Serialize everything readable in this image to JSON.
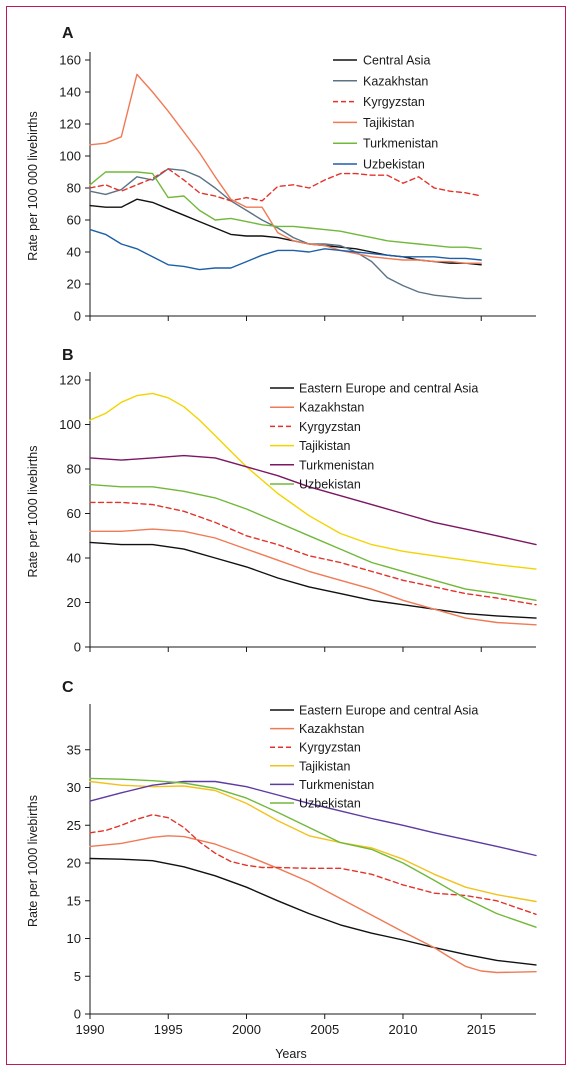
{
  "figure": {
    "frame_color": "#c2185b",
    "x_axis_title": "Years"
  },
  "chart_data": [
    {
      "type": "line",
      "panel": "A",
      "ylabel": "Rate per 100 000 livebirths",
      "xlim": [
        1990,
        2018.5
      ],
      "ylim": [
        0,
        160
      ],
      "yticks": [
        0,
        20,
        40,
        60,
        80,
        100,
        120,
        140,
        160
      ],
      "xticks": [
        1990,
        1995,
        2000,
        2005,
        2010,
        2015
      ],
      "show_x_tick_labels": false,
      "legend_position": "top-right",
      "grid": false,
      "series": [
        {
          "name": "Central Asia",
          "color": "#111111",
          "dash": "solid",
          "x": [
            1990,
            1991,
            1992,
            1993,
            1994,
            1995,
            1996,
            1997,
            1998,
            1999,
            2000,
            2001,
            2002,
            2003,
            2004,
            2005,
            2006,
            2007,
            2008,
            2009,
            2010,
            2011,
            2012,
            2013,
            2014,
            2015
          ],
          "y": [
            69,
            68,
            68,
            73,
            71,
            67,
            63,
            59,
            55,
            51,
            50,
            50,
            49,
            47,
            45,
            44,
            43,
            42,
            40,
            38,
            37,
            35,
            34,
            33,
            33,
            32
          ]
        },
        {
          "name": "Kazakhstan",
          "color": "#5b7385",
          "dash": "solid",
          "x": [
            1990,
            1991,
            1992,
            1993,
            1994,
            1995,
            1996,
            1997,
            1998,
            1999,
            2000,
            2001,
            2002,
            2003,
            2004,
            2005,
            2006,
            2007,
            2008,
            2009,
            2010,
            2011,
            2012,
            2013,
            2014,
            2015
          ],
          "y": [
            78,
            76,
            79,
            87,
            85,
            92,
            91,
            87,
            80,
            72,
            66,
            60,
            55,
            49,
            45,
            45,
            44,
            40,
            34,
            24,
            19,
            15,
            13,
            12,
            11,
            11
          ]
        },
        {
          "name": "Kyrgyzstan",
          "color": "#e2342b",
          "dash": "dashed",
          "x": [
            1990,
            1991,
            1992,
            1993,
            1994,
            1995,
            1996,
            1997,
            1998,
            1999,
            2000,
            2001,
            2002,
            2003,
            2004,
            2005,
            2006,
            2007,
            2008,
            2009,
            2010,
            2011,
            2012,
            2013,
            2014,
            2015
          ],
          "y": [
            80,
            82,
            78,
            82,
            86,
            92,
            85,
            77,
            75,
            72,
            74,
            72,
            81,
            82,
            80,
            85,
            89,
            89,
            88,
            88,
            83,
            87,
            80,
            78,
            77,
            75
          ]
        },
        {
          "name": "Tajikistan",
          "color": "#f07a55",
          "dash": "solid",
          "x": [
            1990,
            1991,
            1992,
            1993,
            1994,
            1995,
            1996,
            1997,
            1998,
            1999,
            2000,
            2001,
            2002,
            2003,
            2004,
            2005,
            2006,
            2007,
            2008,
            2009,
            2010,
            2011,
            2012,
            2013,
            2014,
            2015
          ],
          "y": [
            107,
            108,
            112,
            151,
            140,
            128,
            115,
            102,
            87,
            73,
            68,
            68,
            52,
            47,
            45,
            44,
            41,
            39,
            37,
            36,
            35,
            35,
            34,
            34,
            33,
            33
          ]
        },
        {
          "name": "Turkmenistan",
          "color": "#70b83a",
          "dash": "solid",
          "x": [
            1990,
            1991,
            1992,
            1993,
            1994,
            1995,
            1996,
            1997,
            1998,
            1999,
            2000,
            2001,
            2002,
            2003,
            2004,
            2005,
            2006,
            2007,
            2008,
            2009,
            2010,
            2011,
            2012,
            2013,
            2014,
            2015
          ],
          "y": [
            82,
            90,
            90,
            90,
            89,
            74,
            75,
            66,
            60,
            61,
            59,
            57,
            56,
            56,
            55,
            54,
            53,
            51,
            49,
            47,
            46,
            45,
            44,
            43,
            43,
            42
          ]
        },
        {
          "name": "Uzbekistan",
          "color": "#1e5fa8",
          "dash": "solid",
          "x": [
            1990,
            1991,
            1992,
            1993,
            1994,
            1995,
            1996,
            1997,
            1998,
            1999,
            2000,
            2001,
            2002,
            2003,
            2004,
            2005,
            2006,
            2007,
            2008,
            2009,
            2010,
            2011,
            2012,
            2013,
            2014,
            2015
          ],
          "y": [
            54,
            51,
            45,
            42,
            37,
            32,
            31,
            29,
            30,
            30,
            34,
            38,
            41,
            41,
            40,
            42,
            41,
            40,
            39,
            38,
            37,
            37,
            37,
            36,
            36,
            35
          ]
        }
      ]
    },
    {
      "type": "line",
      "panel": "B",
      "ylabel": "Rate per 1000 livebirths",
      "xlim": [
        1990,
        2018.5
      ],
      "ylim": [
        0,
        120
      ],
      "yticks": [
        0,
        20,
        40,
        60,
        80,
        100,
        120
      ],
      "xticks": [
        1990,
        1995,
        2000,
        2005,
        2010,
        2015
      ],
      "show_x_tick_labels": false,
      "legend_position": "top-right",
      "grid": false,
      "series": [
        {
          "name": "Eastern Europe and central Asia",
          "color": "#111111",
          "dash": "solid",
          "x": [
            1990,
            1992,
            1994,
            1996,
            1998,
            2000,
            2002,
            2004,
            2006,
            2008,
            2010,
            2012,
            2014,
            2016,
            2018.5
          ],
          "y": [
            47,
            46,
            46,
            44,
            40,
            36,
            31,
            27,
            24,
            21,
            19,
            17,
            15,
            14,
            13
          ]
        },
        {
          "name": "Kazakhstan",
          "color": "#f07a55",
          "dash": "solid",
          "x": [
            1990,
            1992,
            1994,
            1996,
            1998,
            2000,
            2002,
            2004,
            2006,
            2008,
            2010,
            2012,
            2014,
            2016,
            2018.5
          ],
          "y": [
            52,
            52,
            53,
            52,
            49,
            44,
            39,
            34,
            30,
            26,
            21,
            17,
            13,
            11,
            10
          ]
        },
        {
          "name": "Kyrgyzstan",
          "color": "#e2342b",
          "dash": "dashed",
          "x": [
            1990,
            1992,
            1994,
            1996,
            1998,
            2000,
            2002,
            2004,
            2006,
            2008,
            2010,
            2012,
            2014,
            2016,
            2018.5
          ],
          "y": [
            65,
            65,
            64,
            61,
            56,
            50,
            46,
            41,
            38,
            34,
            30,
            27,
            24,
            22,
            19
          ]
        },
        {
          "name": "Tajikistan",
          "color": "#f2d400",
          "dash": "solid",
          "x": [
            1990,
            1991,
            1992,
            1993,
            1994,
            1995,
            1996,
            1997,
            1998,
            1999,
            2000,
            2002,
            2004,
            2006,
            2008,
            2010,
            2012,
            2014,
            2016,
            2018.5
          ],
          "y": [
            102,
            105,
            110,
            113,
            114,
            112,
            108,
            102,
            95,
            88,
            81,
            69,
            59,
            51,
            46,
            43,
            41,
            39,
            37,
            35
          ]
        },
        {
          "name": "Turkmenistan",
          "color": "#7b1763",
          "dash": "solid",
          "x": [
            1990,
            1992,
            1994,
            1996,
            1998,
            2000,
            2002,
            2004,
            2006,
            2008,
            2010,
            2012,
            2014,
            2016,
            2018.5
          ],
          "y": [
            85,
            84,
            85,
            86,
            85,
            81,
            77,
            72,
            68,
            64,
            60,
            56,
            53,
            50,
            46
          ]
        },
        {
          "name": "Uzbekistan",
          "color": "#70b83a",
          "dash": "solid",
          "x": [
            1990,
            1992,
            1994,
            1996,
            1998,
            2000,
            2002,
            2004,
            2006,
            2008,
            2010,
            2012,
            2014,
            2016,
            2018.5
          ],
          "y": [
            73,
            72,
            72,
            70,
            67,
            62,
            56,
            50,
            44,
            38,
            34,
            30,
            26,
            24,
            21
          ]
        }
      ]
    },
    {
      "type": "line",
      "panel": "C",
      "ylabel": "Rate per 1000 livebirths",
      "xlim": [
        1990,
        2018.5
      ],
      "ylim": [
        0,
        40
      ],
      "yticks": [
        0,
        5,
        10,
        15,
        20,
        25,
        30,
        35
      ],
      "xticks": [
        1990,
        1995,
        2000,
        2005,
        2010,
        2015
      ],
      "show_x_tick_labels": true,
      "xlabel": "Years",
      "legend_position": "top-right",
      "grid": false,
      "series": [
        {
          "name": "Eastern Europe and central Asia",
          "color": "#111111",
          "dash": "solid",
          "x": [
            1990,
            1992,
            1994,
            1996,
            1998,
            2000,
            2002,
            2004,
            2006,
            2008,
            2010,
            2012,
            2014,
            2016,
            2018.5
          ],
          "y": [
            20.6,
            20.5,
            20.3,
            19.5,
            18.3,
            16.8,
            15,
            13.3,
            11.8,
            10.7,
            9.8,
            8.8,
            7.9,
            7.1,
            6.5
          ]
        },
        {
          "name": "Kazakhstan",
          "color": "#f07a55",
          "dash": "solid",
          "x": [
            1990,
            1992,
            1994,
            1995,
            1996,
            1998,
            2000,
            2002,
            2004,
            2006,
            2008,
            2010,
            2012,
            2013,
            2014,
            2015,
            2016,
            2018.5
          ],
          "y": [
            22.2,
            22.6,
            23.4,
            23.6,
            23.5,
            22.5,
            21,
            19.3,
            17.5,
            15.3,
            13.1,
            10.9,
            8.8,
            7.5,
            6.3,
            5.7,
            5.5,
            5.6
          ]
        },
        {
          "name": "Kyrgyzstan",
          "color": "#e2342b",
          "dash": "dashed",
          "x": [
            1990,
            1991,
            1992,
            1993,
            1994,
            1995,
            1996,
            1997,
            1998,
            1999,
            2000,
            2001,
            2002,
            2004,
            2006,
            2008,
            2010,
            2012,
            2014,
            2016,
            2018.5
          ],
          "y": [
            24,
            24.3,
            25,
            25.8,
            26.4,
            26,
            24.7,
            22.8,
            21.3,
            20.2,
            19.7,
            19.4,
            19.4,
            19.3,
            19.3,
            18.5,
            17.1,
            16,
            15.7,
            15,
            13.2
          ]
        },
        {
          "name": "Tajikistan",
          "color": "#f2c21c",
          "dash": "solid",
          "x": [
            1990,
            1992,
            1994,
            1996,
            1998,
            2000,
            2002,
            2004,
            2006,
            2008,
            2010,
            2012,
            2014,
            2016,
            2018.5
          ],
          "y": [
            30.8,
            30.3,
            30.1,
            30.2,
            29.6,
            27.9,
            25.6,
            23.6,
            22.7,
            22,
            20.5,
            18.5,
            16.8,
            15.8,
            14.9
          ]
        },
        {
          "name": "Turkmenistan",
          "color": "#5e3aa3",
          "dash": "solid",
          "x": [
            1990,
            1992,
            1994,
            1996,
            1998,
            2000,
            2002,
            2004,
            2006,
            2008,
            2010,
            2012,
            2014,
            2016,
            2018.5
          ],
          "y": [
            28.2,
            29.3,
            30.3,
            30.8,
            30.8,
            30.1,
            29,
            27.9,
            26.9,
            25.9,
            25,
            24,
            23.1,
            22.2,
            21
          ]
        },
        {
          "name": "Uzbekistan",
          "color": "#70b83a",
          "dash": "solid",
          "x": [
            1990,
            1992,
            1994,
            1996,
            1998,
            2000,
            2002,
            2004,
            2006,
            2008,
            2010,
            2012,
            2014,
            2016,
            2018.5
          ],
          "y": [
            31.2,
            31.1,
            30.9,
            30.6,
            29.9,
            28.6,
            26.7,
            24.7,
            22.7,
            21.8,
            20,
            17.7,
            15.3,
            13.3,
            11.5
          ]
        }
      ]
    }
  ]
}
